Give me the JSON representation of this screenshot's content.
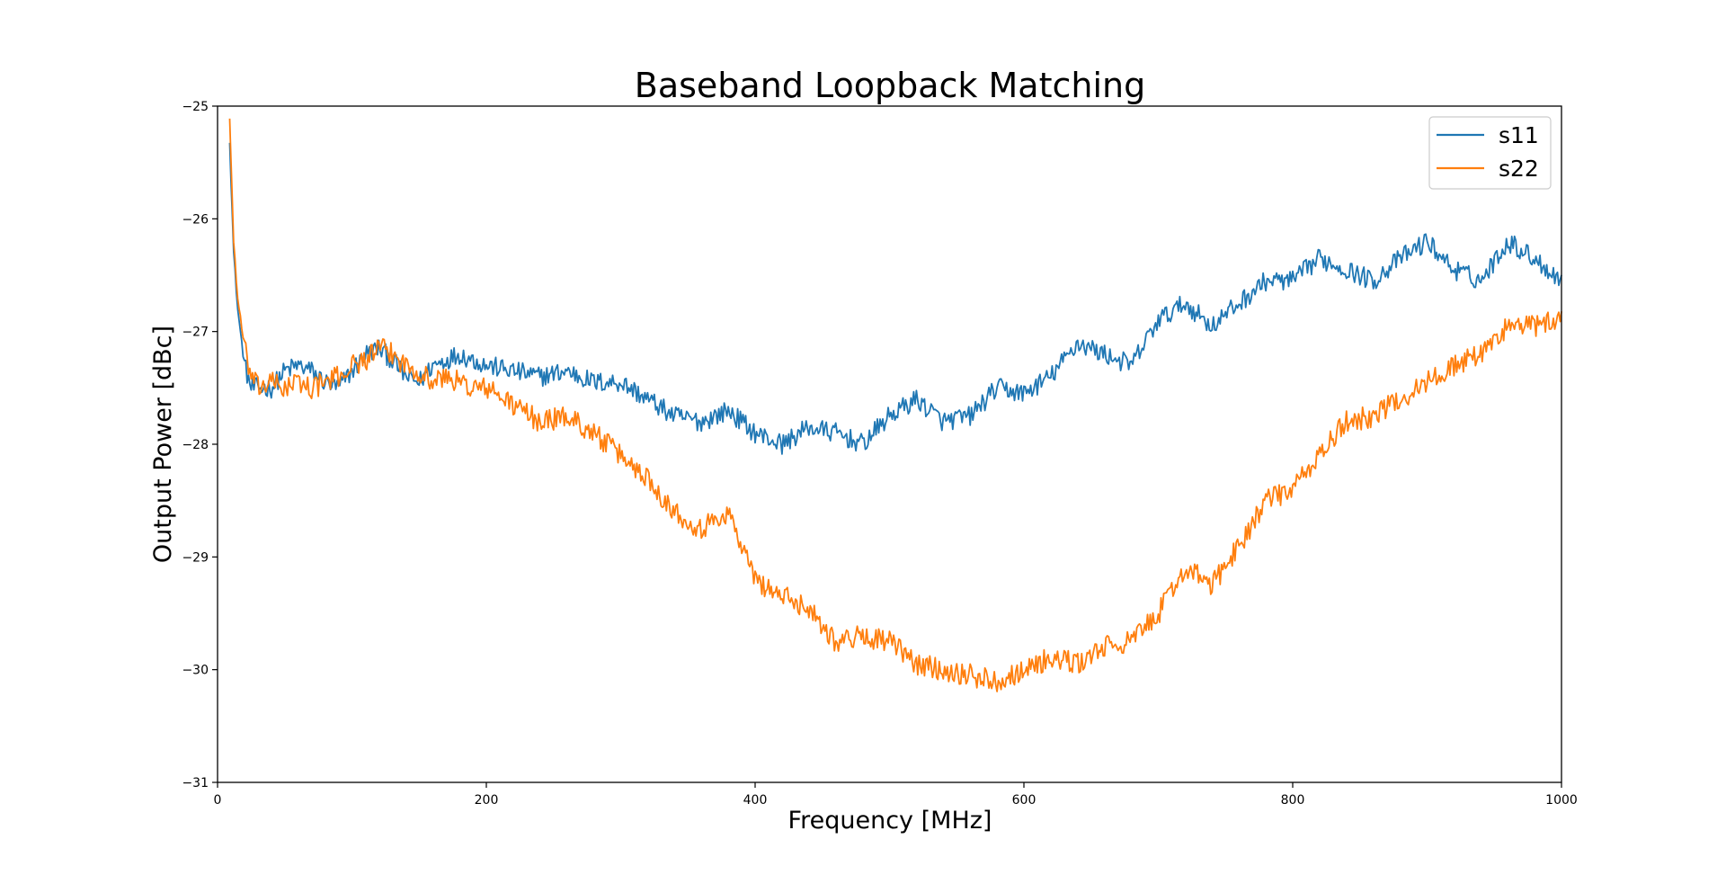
{
  "chart_data": {
    "type": "line",
    "title": "Baseband Loopback Matching",
    "xlabel": "Frequency [MHz]",
    "ylabel": "Output Power [dBc]",
    "xlim": [
      0,
      1000
    ],
    "ylim": [
      -31,
      -25
    ],
    "xticks": [
      0,
      200,
      400,
      600,
      800,
      1000
    ],
    "xtick_labels": [
      "0",
      "200",
      "400",
      "600",
      "800",
      "1000"
    ],
    "yticks": [
      -31,
      -30,
      -29,
      -28,
      -27,
      -26,
      -25
    ],
    "ytick_labels": [
      "−31",
      "−30",
      "−29",
      "−28",
      "−27",
      "−26",
      "−25"
    ],
    "grid": false,
    "legend_position": "top-right",
    "series": [
      {
        "name": "s11",
        "color": "#1f77b4",
        "noise": 0.09,
        "x": [
          9,
          12,
          15,
          20,
          25,
          30,
          40,
          50,
          60,
          70,
          80,
          90,
          100,
          110,
          120,
          130,
          140,
          150,
          160,
          170,
          180,
          190,
          200,
          220,
          240,
          260,
          280,
          300,
          320,
          340,
          360,
          380,
          400,
          420,
          440,
          460,
          480,
          500,
          520,
          540,
          560,
          580,
          600,
          620,
          640,
          660,
          680,
          700,
          720,
          740,
          760,
          780,
          800,
          820,
          840,
          860,
          880,
          900,
          920,
          940,
          960,
          980,
          1000
        ],
        "y": [
          -25.3,
          -26.3,
          -26.8,
          -27.3,
          -27.5,
          -27.5,
          -27.5,
          -27.35,
          -27.3,
          -27.35,
          -27.45,
          -27.5,
          -27.35,
          -27.2,
          -27.15,
          -27.25,
          -27.4,
          -27.45,
          -27.3,
          -27.25,
          -27.2,
          -27.25,
          -27.3,
          -27.35,
          -27.4,
          -27.35,
          -27.45,
          -27.45,
          -27.6,
          -27.75,
          -27.8,
          -27.7,
          -27.9,
          -28.0,
          -27.85,
          -27.9,
          -28.0,
          -27.75,
          -27.6,
          -27.8,
          -27.75,
          -27.5,
          -27.55,
          -27.4,
          -27.1,
          -27.2,
          -27.3,
          -26.9,
          -26.75,
          -26.95,
          -26.75,
          -26.55,
          -26.55,
          -26.35,
          -26.45,
          -26.55,
          -26.35,
          -26.2,
          -26.45,
          -26.55,
          -26.2,
          -26.35,
          -26.55
        ]
      },
      {
        "name": "s22",
        "color": "#ff7f0e",
        "noise": 0.1,
        "x": [
          9,
          12,
          15,
          20,
          25,
          30,
          40,
          50,
          60,
          70,
          80,
          90,
          100,
          110,
          120,
          130,
          140,
          150,
          160,
          170,
          180,
          190,
          200,
          220,
          240,
          260,
          280,
          300,
          320,
          340,
          360,
          380,
          400,
          420,
          440,
          460,
          480,
          500,
          520,
          540,
          560,
          580,
          600,
          620,
          640,
          660,
          680,
          700,
          720,
          740,
          760,
          780,
          800,
          820,
          840,
          860,
          880,
          900,
          920,
          940,
          960,
          980,
          1000
        ],
        "y": [
          -25.1,
          -26.2,
          -26.7,
          -27.15,
          -27.4,
          -27.5,
          -27.45,
          -27.5,
          -27.45,
          -27.5,
          -27.45,
          -27.4,
          -27.3,
          -27.25,
          -27.15,
          -27.2,
          -27.3,
          -27.35,
          -27.45,
          -27.4,
          -27.45,
          -27.5,
          -27.5,
          -27.65,
          -27.8,
          -27.75,
          -27.9,
          -28.1,
          -28.3,
          -28.6,
          -28.75,
          -28.6,
          -29.2,
          -29.35,
          -29.45,
          -29.75,
          -29.7,
          -29.75,
          -29.95,
          -30.0,
          -30.05,
          -30.1,
          -30.0,
          -29.9,
          -29.95,
          -29.8,
          -29.75,
          -29.5,
          -29.1,
          -29.25,
          -28.9,
          -28.5,
          -28.4,
          -28.1,
          -27.8,
          -27.75,
          -27.6,
          -27.45,
          -27.3,
          -27.2,
          -26.95,
          -26.95,
          -26.9
        ]
      }
    ]
  }
}
